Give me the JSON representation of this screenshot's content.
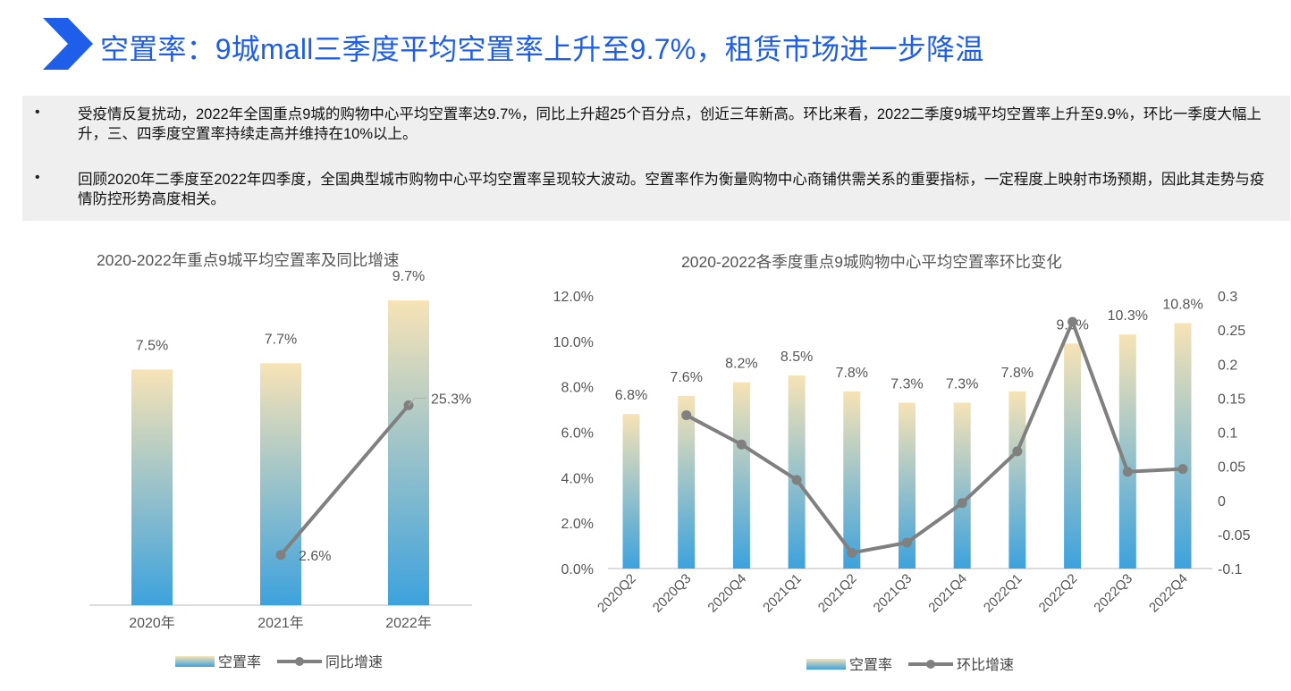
{
  "header": {
    "title": "空置率：9城mall三季度平均空置率上升至9.7%，租赁市场进一步降温",
    "logo_icon": "chevron-right-icon",
    "accent_color": "#1f5ee8"
  },
  "bullets": [
    {
      "marker": "•",
      "text": "受疫情反复扰动，2022年全国重点9城的购物中心平均空置率达9.7%，同比上升超25个百分点，创近三年新高。环比来看，2022二季度9城平均空置率上升至9.9%，环比一季度大幅上升，三、四季度空置率持续走高并维持在10%以上。"
    },
    {
      "marker": "•",
      "text": "回顾2020年二季度至2022年四季度，全国典型城市购物中心平均空置率呈现较大波动。空置率作为衡量购物中心商铺供需关系的重要指标，一定程度上映射市场预期，因此其走势与疫情防控形势高度相关。"
    }
  ],
  "chart_data": [
    {
      "type": "bar",
      "title": "2020-2022年重点9城平均空置率及同比增速",
      "categories": [
        "2020年",
        "2021年",
        "2022年"
      ],
      "bar_series": {
        "name": "空置率",
        "values": [
          7.5,
          7.7,
          9.7
        ],
        "labels": [
          "7.5%",
          "7.7%",
          "9.7%"
        ],
        "gradient_top": "#f7e3b6",
        "gradient_bottom": "#3da2dd"
      },
      "line_series": {
        "name": "同比增速",
        "values": [
          null,
          2.6,
          25.3
        ],
        "labels": [
          "",
          "2.6%",
          "25.3%"
        ],
        "color": "#808080"
      },
      "legend": {
        "position": "bottom",
        "items": [
          "空置率",
          "同比增速"
        ]
      },
      "ylim_bar": [
        0,
        10.5
      ],
      "ylim_line": [
        -5,
        45
      ],
      "grid": false
    },
    {
      "type": "bar",
      "title": "2020-2022各季度重点9城购物中心平均空置率环比变化",
      "categories": [
        "2020Q2",
        "2020Q3",
        "2020Q4",
        "2021Q1",
        "2021Q2",
        "2021Q3",
        "2021Q4",
        "2022Q1",
        "2022Q2",
        "2022Q3",
        "2022Q4"
      ],
      "bar_series": {
        "name": "空置率",
        "values": [
          6.8,
          7.6,
          8.2,
          8.5,
          7.8,
          7.3,
          7.3,
          7.8,
          9.9,
          10.3,
          10.8
        ],
        "labels": [
          "6.8%",
          "7.6%",
          "8.2%",
          "8.5%",
          "7.8%",
          "7.3%",
          "7.3%",
          "7.8%",
          "9.9%",
          "10.3%",
          "10.8%"
        ],
        "gradient_top": "#f7e3b6",
        "gradient_bottom": "#3da2dd"
      },
      "line_series": {
        "name": "环比增速",
        "values": [
          null,
          0.125,
          0.082,
          0.03,
          -0.077,
          -0.062,
          -0.004,
          0.072,
          0.262,
          0.042,
          0.046
        ],
        "color": "#808080"
      },
      "left_axis": {
        "ticks": [
          "0.0%",
          "2.0%",
          "4.0%",
          "6.0%",
          "8.0%",
          "10.0%",
          "12.0%"
        ],
        "range": [
          0,
          12
        ]
      },
      "right_axis": {
        "ticks": [
          "-0.1",
          "-0.05",
          "0",
          "0.05",
          "0.1",
          "0.15",
          "0.2",
          "0.25",
          "0.3"
        ],
        "range": [
          -0.1,
          0.3
        ]
      },
      "legend": {
        "position": "bottom",
        "items": [
          "空置率",
          "环比增速"
        ]
      },
      "grid": false
    }
  ]
}
